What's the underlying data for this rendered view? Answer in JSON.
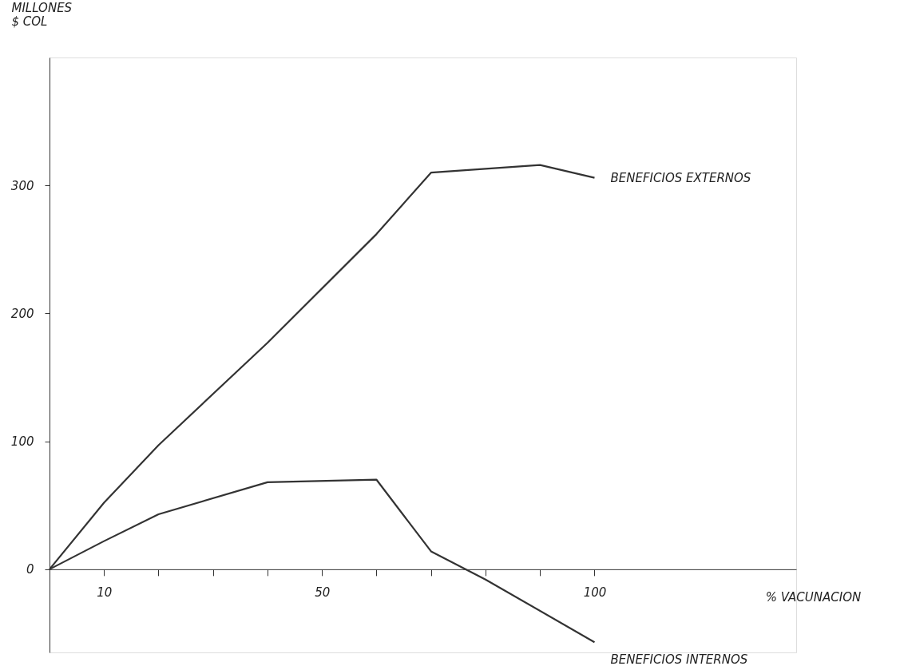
{
  "chart_data": {
    "type": "line",
    "xlabel": "% VACUNACION",
    "ylabel": "MILLONES\n$ COL",
    "xlim": [
      0,
      137
    ],
    "ylim": [
      -65,
      400
    ],
    "xticks": [
      {
        "value": 10,
        "label": "10"
      },
      {
        "value": 20,
        "label": null
      },
      {
        "value": 30,
        "label": null
      },
      {
        "value": 40,
        "label": null
      },
      {
        "value": 50,
        "label": "50"
      },
      {
        "value": 60,
        "label": null
      },
      {
        "value": 70,
        "label": null
      },
      {
        "value": 80,
        "label": null
      },
      {
        "value": 90,
        "label": null
      },
      {
        "value": 100,
        "label": "100"
      }
    ],
    "yticks": [
      0,
      100,
      200,
      300
    ],
    "grid": false,
    "legend": false,
    "marker": "none",
    "line_style": "solid",
    "series": [
      {
        "name": "BENEFICIOS EXTERNOS",
        "color": "#333333",
        "x": [
          0,
          10,
          20,
          40,
          60,
          70,
          80,
          90,
          100
        ],
        "values": [
          0,
          52,
          97,
          177,
          262,
          310,
          313,
          316,
          306
        ]
      },
      {
        "name": "BENEFICIOS INTERNOS",
        "color": "#333333",
        "x": [
          0,
          10,
          20,
          40,
          60,
          70,
          80,
          100
        ],
        "values": [
          0,
          22,
          43,
          68,
          70,
          14,
          -8,
          -57
        ]
      }
    ]
  }
}
